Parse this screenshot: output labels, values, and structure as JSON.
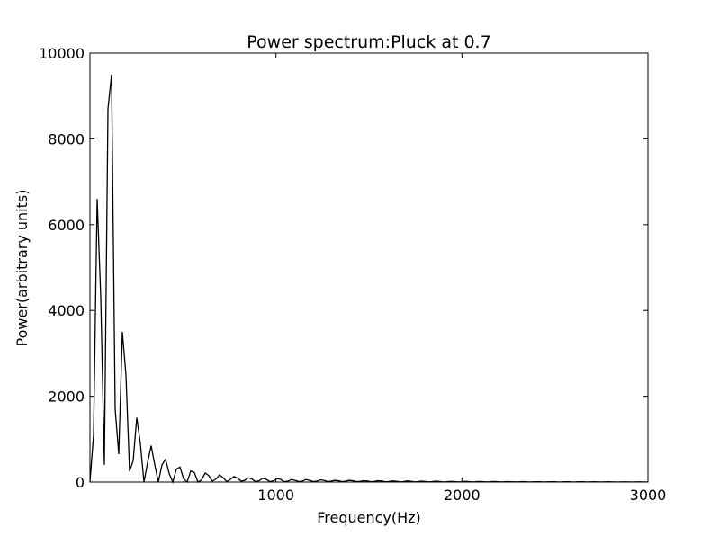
{
  "chart_data": {
    "type": "line",
    "title": "Power spectrum:Pluck at 0.7",
    "xlabel": "Frequency(Hz)",
    "ylabel": "Power(arbitrary units)",
    "xlim": [
      0,
      3000
    ],
    "ylim": [
      0,
      10000
    ],
    "xticks": [
      0,
      1000,
      2000,
      3000
    ],
    "xtick_labels": [
      "",
      "1000",
      "2000",
      "3000"
    ],
    "yticks": [
      0,
      2000,
      4000,
      6000,
      8000,
      10000
    ],
    "ytick_labels": [
      "0",
      "2000",
      "4000",
      "6000",
      "8000",
      "10000"
    ],
    "grid": false,
    "line_color": "#000000",
    "series": [
      {
        "x": [
          0,
          19.4,
          38.7,
          58.1,
          77.4,
          96.8,
          116.1,
          135.5,
          154.8,
          174.2,
          193.5,
          212.9,
          232.3,
          251.6,
          271.0,
          290.3,
          309.7,
          329.0,
          348.4,
          367.7,
          387.1,
          406.5,
          425.8,
          445.2,
          464.5,
          483.9,
          503.2,
          522.6,
          541.9,
          561.3,
          580.6,
          600.0,
          619.4,
          638.7,
          658.1,
          677.4,
          696.8,
          716.1,
          735.5,
          754.8,
          774.2,
          793.5,
          812.9,
          832.3,
          851.6,
          871.0,
          890.3,
          909.7,
          929.0,
          948.4,
          967.7,
          987.1,
          1006.5,
          1025.8,
          1045.2,
          1064.5,
          1083.9,
          1103.2,
          1122.6,
          1141.9,
          1161.3,
          1180.6,
          1200.0,
          1219.4,
          1238.7,
          1258.1,
          1277.4,
          1296.8,
          1316.1,
          1335.5,
          1354.8,
          1374.2,
          1393.5,
          1412.9,
          1432.3,
          1451.6,
          1471.0,
          1490.3,
          1509.7,
          1529.0,
          1548.4,
          1567.7,
          1587.1,
          1606.5,
          1625.8,
          1645.2,
          1664.5,
          1683.9,
          1703.2,
          1722.6,
          1741.9,
          1761.3,
          1780.6,
          1800.0,
          1819.4,
          1838.7,
          1858.1,
          1877.4,
          1896.8,
          1916.1,
          1935.5,
          1954.8,
          1974.2,
          1993.5,
          2012.9,
          2032.3,
          2051.6,
          2071.0,
          2090.3,
          2109.7,
          2129.0,
          2148.4,
          2167.7,
          2187.1,
          2206.5,
          2225.8,
          2245.2,
          2264.5,
          2283.9,
          2303.2,
          2322.6,
          2341.9,
          2361.3,
          2380.6,
          2400.0,
          2419.4,
          2438.7,
          2458.1,
          2477.4,
          2496.8,
          2516.1,
          2535.5,
          2554.8,
          2574.2,
          2593.5,
          2612.9,
          2632.3,
          2651.6,
          2671.0,
          2690.3,
          2709.7,
          2729.0,
          2748.4,
          2767.7,
          2787.1,
          2806.5,
          2825.8,
          2845.2,
          2864.5,
          2883.9,
          2903.2,
          2922.6,
          2941.9,
          2961.3,
          2980.6,
          3000.0
        ],
        "values": [
          0,
          1100,
          6600,
          4300,
          400,
          8700,
          9500,
          1700,
          650,
          3500,
          2500,
          250,
          500,
          1500,
          900,
          0,
          450,
          850,
          400,
          0,
          400,
          530,
          200,
          0,
          300,
          350,
          80,
          0,
          260,
          220,
          0,
          50,
          210,
          150,
          20,
          70,
          170,
          100,
          10,
          60,
          130,
          90,
          20,
          40,
          100,
          70,
          10,
          30,
          90,
          60,
          10,
          30,
          80,
          60,
          10,
          20,
          60,
          40,
          10,
          20,
          60,
          40,
          10,
          20,
          50,
          40,
          10,
          20,
          40,
          30,
          10,
          20,
          40,
          30,
          10,
          15,
          30,
          25,
          8,
          15,
          30,
          25,
          8,
          12,
          25,
          20,
          5,
          10,
          25,
          20,
          5,
          10,
          20,
          15,
          5,
          10,
          20,
          15,
          5,
          8,
          15,
          12,
          5,
          8,
          15,
          12,
          4,
          6,
          12,
          10,
          4,
          6,
          12,
          10,
          4,
          6,
          10,
          8,
          4,
          5,
          10,
          8,
          3,
          5,
          8,
          7,
          3,
          5,
          8,
          7,
          3,
          4,
          7,
          6,
          3,
          4,
          7,
          6,
          2,
          4,
          6,
          5,
          2,
          4,
          6,
          5,
          2,
          3,
          5,
          4,
          2,
          3,
          5,
          4,
          2,
          2
        ]
      }
    ]
  }
}
